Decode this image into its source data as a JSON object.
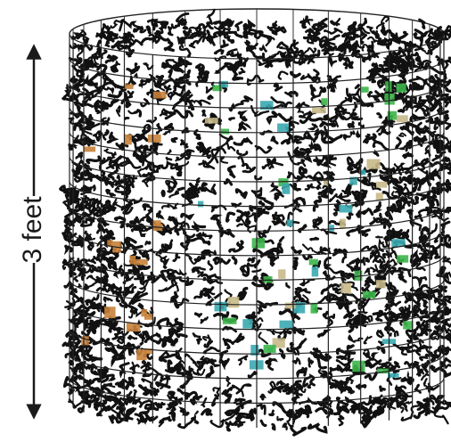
{
  "label": "3 feet"
}
